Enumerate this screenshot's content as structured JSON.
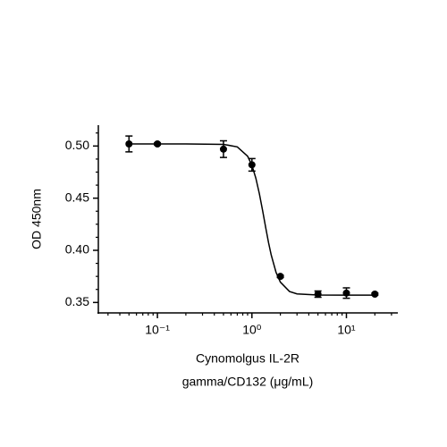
{
  "chart_data": {
    "type": "scatter",
    "xlabel": [
      "Cynomolgus IL-2R",
      "gamma/CD132 (μg/mL)"
    ],
    "ylabel": "OD 450nm",
    "xscale": "log",
    "xlim": [
      0.0237,
      35
    ],
    "ylim": [
      0.34,
      0.52
    ],
    "xticks": [
      {
        "value": 0.1,
        "label": "10⁻¹"
      },
      {
        "value": 1,
        "label": "10⁰"
      },
      {
        "value": 10,
        "label": "10¹"
      }
    ],
    "xticks_minor": [
      0.03,
      0.04,
      0.05,
      0.06,
      0.07,
      0.08,
      0.09,
      0.2,
      0.3,
      0.4,
      0.5,
      0.6,
      0.7,
      0.8,
      0.9,
      2,
      3,
      4,
      5,
      6,
      7,
      8,
      9,
      20,
      30
    ],
    "yticks": [
      {
        "value": 0.35,
        "label": "0.35"
      },
      {
        "value": 0.4,
        "label": "0.40"
      },
      {
        "value": 0.45,
        "label": "0.45"
      },
      {
        "value": 0.5,
        "label": "0.50"
      }
    ],
    "yticks_minor": [
      0.3625,
      0.375,
      0.3875,
      0.4125,
      0.425,
      0.4375,
      0.4625,
      0.475,
      0.4875,
      0.5125
    ],
    "x": [
      0.05,
      0.1,
      0.5,
      1,
      2,
      5,
      10,
      20
    ],
    "series": [
      {
        "color": "#000000",
        "values": [
          0.502,
          0.502,
          0.497,
          0.482,
          0.375,
          0.358,
          0.359,
          0.358
        ],
        "errors": [
          0.0076,
          0.001,
          0.008,
          0.006,
          0.001,
          0.003,
          0.005,
          0.001
        ]
      }
    ],
    "curve": {
      "color": "#000000",
      "x": [
        0.05,
        0.1,
        0.2,
        0.5,
        0.7,
        0.9,
        1.0,
        1.1,
        1.2,
        1.3,
        1.4,
        1.5,
        1.6,
        1.8,
        2.0,
        2.5,
        3,
        5,
        10,
        20
      ],
      "values": [
        0.502,
        0.502,
        0.502,
        0.5016,
        0.4992,
        0.4903,
        0.4815,
        0.4692,
        0.4541,
        0.4377,
        0.4216,
        0.4073,
        0.3955,
        0.3789,
        0.3695,
        0.3605,
        0.3582,
        0.3571,
        0.357,
        0.357
      ]
    }
  }
}
